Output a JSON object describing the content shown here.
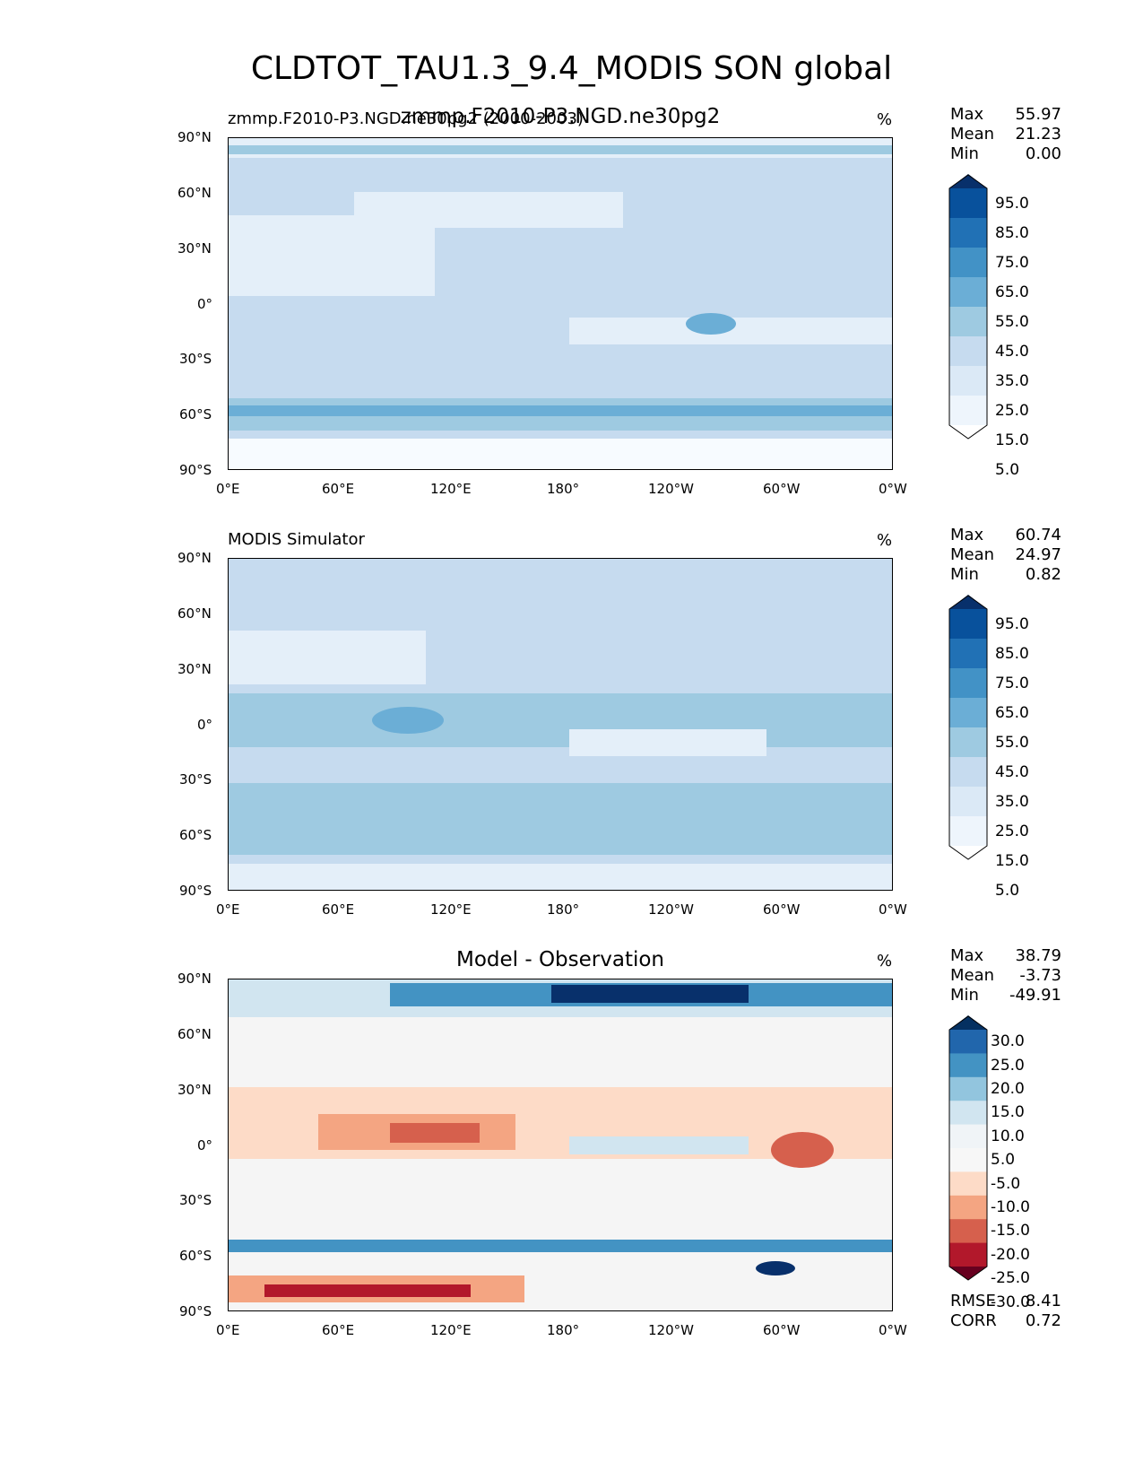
{
  "title": "CLDTOT_TAU1.3_9.4_MODIS SON global",
  "panels": [
    {
      "id": "test",
      "left_label": "zmmp.F2010-P3.NGD.ne30pg2 (2000-2003)",
      "center_label": "zmmp.F2010-P3.NGD.ne30pg2",
      "units": "%",
      "stats": {
        "max_label": "Max",
        "max": "55.97",
        "mean_label": "Mean",
        "mean": "21.23",
        "min_label": "Min",
        "min": "0.00"
      },
      "colorbar": {
        "levels": [
          "95.0",
          "85.0",
          "75.0",
          "65.0",
          "55.0",
          "45.0",
          "35.0",
          "25.0",
          "15.0",
          "5.0"
        ],
        "colors": [
          "#08306b",
          "#08519c",
          "#2171b5",
          "#4292c6",
          "#6baed6",
          "#9ecae1",
          "#c6dbef",
          "#dbe9f6",
          "#eef5fc",
          "#ffffff"
        ]
      }
    },
    {
      "id": "reference",
      "left_label": "MODIS Simulator",
      "center_label": "",
      "units": "%",
      "stats": {
        "max_label": "Max",
        "max": "60.74",
        "mean_label": "Mean",
        "mean": "24.97",
        "min_label": "Min",
        "min": "0.82"
      },
      "colorbar": {
        "levels": [
          "95.0",
          "85.0",
          "75.0",
          "65.0",
          "55.0",
          "45.0",
          "35.0",
          "25.0",
          "15.0",
          "5.0"
        ],
        "colors": [
          "#08306b",
          "#08519c",
          "#2171b5",
          "#4292c6",
          "#6baed6",
          "#9ecae1",
          "#c6dbef",
          "#dbe9f6",
          "#eef5fc",
          "#ffffff"
        ]
      }
    },
    {
      "id": "difference",
      "left_label": "",
      "center_label": "Model - Observation",
      "units": "%",
      "stats": {
        "max_label": "Max",
        "max": "38.79",
        "mean_label": "Mean",
        "mean": "-3.73",
        "min_label": "Min",
        "min": "-49.91"
      },
      "colorbar": {
        "levels": [
          "30.0",
          "25.0",
          "20.0",
          "15.0",
          "10.0",
          "5.0",
          "-5.0",
          "-10.0",
          "-15.0",
          "-20.0",
          "-25.0",
          "-30.0"
        ],
        "colors": [
          "#053061",
          "#2166ac",
          "#4393c3",
          "#92c5de",
          "#d1e5f0",
          "#f0f4f7",
          "#f7f7f7",
          "#fddbc7",
          "#f4a582",
          "#d6604d",
          "#b2182b",
          "#67001f"
        ]
      },
      "metrics": {
        "rmse_label": "RMSE",
        "rmse": "8.41",
        "corr_label": "CORR",
        "corr": "0.72"
      }
    }
  ],
  "axes": {
    "lat_labels": [
      "90°N",
      "60°N",
      "30°N",
      "0°",
      "30°S",
      "60°S",
      "90°S"
    ],
    "lon_labels": [
      "0°E",
      "60°E",
      "120°E",
      "180°",
      "120°W",
      "60°W",
      "0°W"
    ]
  },
  "map_colors": {
    "test_base": "#c6dbef",
    "test_light": "#e4eff9",
    "test_mid": "#9ecae1",
    "test_dark": "#6baed6",
    "ref_base": "#c6dbef",
    "ref_light": "#e4eff9",
    "ref_mid": "#9ecae1",
    "diff_base": "#f5f5f5",
    "diff_pos1": "#d1e5f0",
    "diff_pos2": "#4393c3",
    "diff_pos3": "#08306b",
    "diff_neg1": "#fddbc7",
    "diff_neg2": "#f4a582",
    "diff_neg3": "#d6604d",
    "diff_neg4": "#b2182b"
  }
}
